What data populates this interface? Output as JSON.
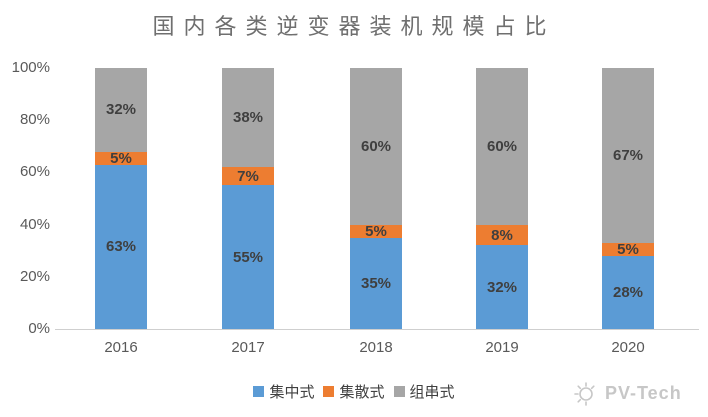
{
  "title": "国内各类逆变器装机规模占比",
  "chart_data": {
    "type": "bar",
    "stacked": true,
    "title": "国内各类逆变器装机规模占比",
    "categories": [
      "2016",
      "2017",
      "2018",
      "2019",
      "2020"
    ],
    "series": [
      {
        "key": "centralized",
        "name": "集中式",
        "color": "#5B9BD5",
        "values": [
          63,
          55,
          35,
          32,
          28
        ]
      },
      {
        "key": "cluster",
        "name": "集散式",
        "color": "#ED7D31",
        "values": [
          5,
          7,
          5,
          8,
          5
        ]
      },
      {
        "key": "string",
        "name": "组串式",
        "color": "#A6A6A6",
        "values": [
          32,
          38,
          60,
          60,
          67
        ]
      }
    ],
    "unit": "%",
    "ylim": [
      0,
      100
    ],
    "y_ticks": [
      0,
      20,
      40,
      60,
      80,
      100
    ],
    "y_tick_labels": [
      "0%",
      "20%",
      "40%",
      "60%",
      "80%",
      "100%"
    ],
    "xlabel": "",
    "ylabel": "",
    "grid": false,
    "legend_position": "bottom",
    "data_labels": "inside-center"
  },
  "watermark": {
    "text": "PV-Tech",
    "icon": "sun-icon"
  },
  "colors": {
    "title_text": "#6F6F6F",
    "axis_label": "#595959",
    "data_label": "#3F3F3F",
    "axis_line": "#CFCFCF",
    "watermark": "#C7C7C7"
  }
}
